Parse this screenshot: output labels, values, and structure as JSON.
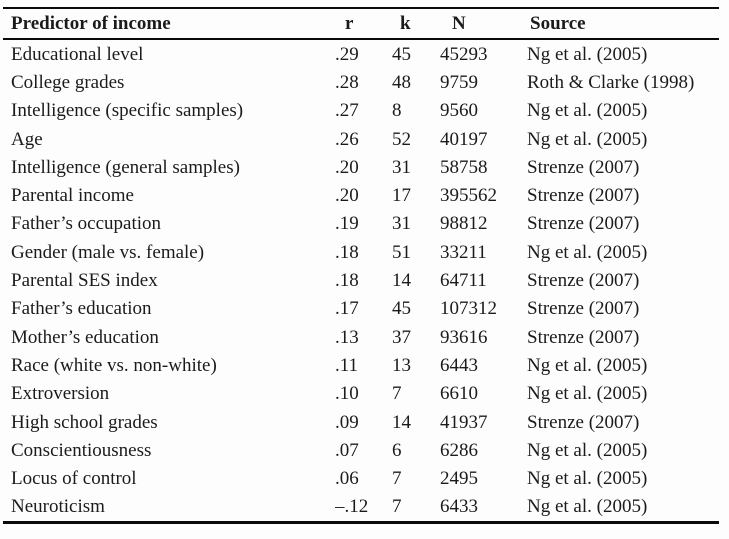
{
  "table": {
    "title_semantic": "Predictors of income meta-analytic correlations",
    "columns": [
      "Predictor of income",
      "r",
      "k",
      "N",
      "Source"
    ],
    "rows": [
      [
        "Educational level",
        ".29",
        "45",
        "45293",
        "Ng et al. (2005)"
      ],
      [
        "College grades",
        ".28",
        "48",
        "9759",
        "Roth & Clarke (1998)"
      ],
      [
        "Intelligence (specific samples)",
        ".27",
        "8",
        "9560",
        "Ng et al. (2005)"
      ],
      [
        "Age",
        ".26",
        "52",
        "40197",
        "Ng et al. (2005)"
      ],
      [
        "Intelligence (general samples)",
        ".20",
        "31",
        "58758",
        "Strenze (2007)"
      ],
      [
        "Parental income",
        ".20",
        "17",
        "395562",
        "Strenze (2007)"
      ],
      [
        "Father’s occupation",
        ".19",
        "31",
        "98812",
        "Strenze (2007)"
      ],
      [
        "Gender (male vs. female)",
        ".18",
        "51",
        "33211",
        "Ng et al. (2005)"
      ],
      [
        "Parental SES index",
        ".18",
        "14",
        "64711",
        "Strenze (2007)"
      ],
      [
        "Father’s education",
        ".17",
        "45",
        "107312",
        "Strenze (2007)"
      ],
      [
        "Mother’s education",
        ".13",
        "37",
        "93616",
        "Strenze (2007)"
      ],
      [
        "Race (white vs. non-white)",
        ".11",
        "13",
        "6443",
        "Ng et al. (2005)"
      ],
      [
        "Extroversion",
        ".10",
        "7",
        "6610",
        "Ng et al. (2005)"
      ],
      [
        "High school grades",
        ".09",
        "14",
        "41937",
        "Strenze (2007)"
      ],
      [
        "Conscientiousness",
        ".07",
        "6",
        "6286",
        "Ng et al. (2005)"
      ],
      [
        "Locus of control",
        ".06",
        "7",
        "2495",
        "Ng et al. (2005)"
      ],
      [
        "Neuroticism",
        "–.12",
        "7",
        "6433",
        "Ng et al. (2005)"
      ]
    ]
  },
  "colors": {
    "text": "#1b1b1b",
    "rule": "#0a0a0a",
    "background": "#fdfdfd"
  }
}
